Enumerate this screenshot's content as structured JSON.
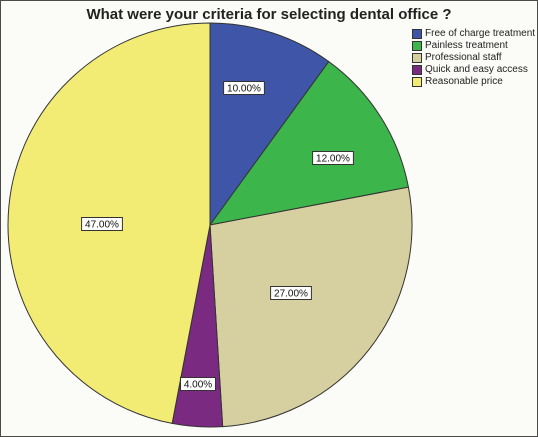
{
  "chart_data": {
    "type": "pie",
    "title": "What were your criteria for selecting dental office ?",
    "start_angle_deg": 0,
    "direction": "clockwise",
    "legend_position": "top-right",
    "slices": [
      {
        "label": "Free of charge treatment",
        "value": 10,
        "display": "10.00%",
        "color": "#3f56a8"
      },
      {
        "label": "Painless treatment",
        "value": 12,
        "display": "12.00%",
        "color": "#3cb54a"
      },
      {
        "label": "Professional staff",
        "value": 27,
        "display": "27.00%",
        "color": "#d6d0a0"
      },
      {
        "label": "Quick and easy access",
        "value": 4,
        "display": "4.00%",
        "color": "#7a2a80"
      },
      {
        "label": "Reasonable price",
        "value": 47,
        "display": "47.00%",
        "color": "#f2ec75"
      }
    ]
  }
}
